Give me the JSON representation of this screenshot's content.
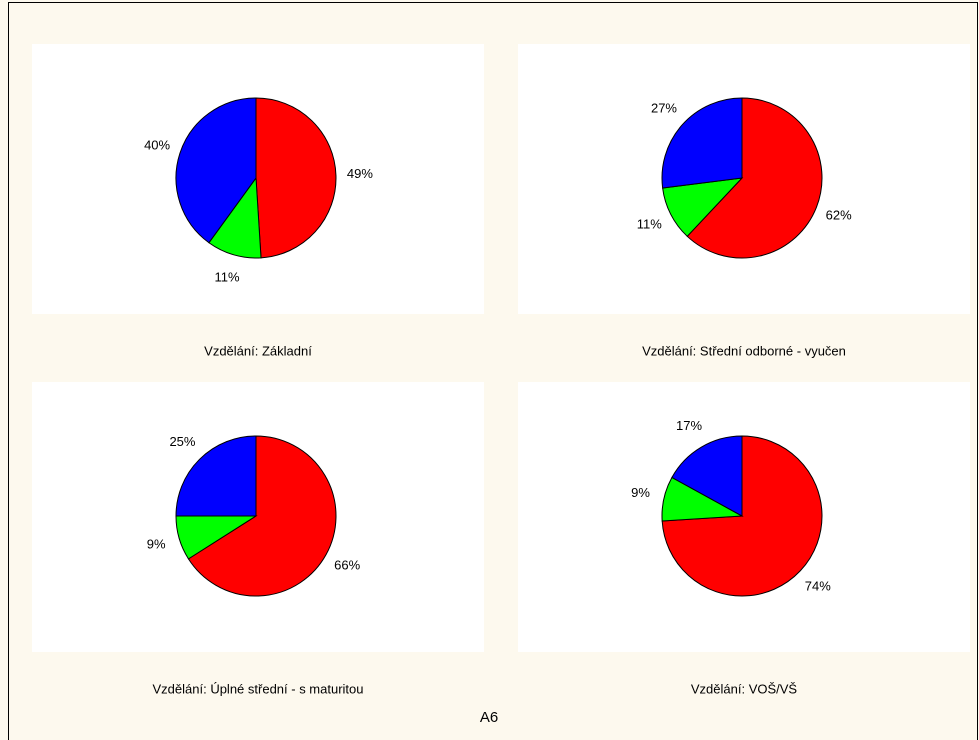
{
  "chart_data": [
    {
      "type": "pie",
      "title": "Vzdělání: Základní",
      "categories": [
        "",
        "",
        ""
      ],
      "values": [
        49,
        11,
        40
      ],
      "value_labels": [
        "49%",
        "11%",
        "40%"
      ],
      "colors": [
        "#ff0000",
        "#00ff00",
        "#0000ff"
      ]
    },
    {
      "type": "pie",
      "title": "Vzdělání: Střední odborné - vyučen",
      "categories": [
        "",
        "",
        ""
      ],
      "values": [
        62,
        11,
        27
      ],
      "value_labels": [
        "62%",
        "11%",
        "27%"
      ],
      "colors": [
        "#ff0000",
        "#00ff00",
        "#0000ff"
      ]
    },
    {
      "type": "pie",
      "title": "Vzdělání: Úplné střední - s maturitou",
      "categories": [
        "",
        "",
        ""
      ],
      "values": [
        66,
        9,
        25
      ],
      "value_labels": [
        "66%",
        "9%",
        "25%"
      ],
      "colors": [
        "#ff0000",
        "#00ff00",
        "#0000ff"
      ]
    },
    {
      "type": "pie",
      "title": "Vzdělání: VOŠ/VŠ",
      "categories": [
        "",
        "",
        ""
      ],
      "values": [
        74,
        9,
        17
      ],
      "value_labels": [
        "74%",
        "9%",
        "17%"
      ],
      "colors": [
        "#ff0000",
        "#00ff00",
        "#0000ff"
      ]
    }
  ],
  "footer": "A6"
}
